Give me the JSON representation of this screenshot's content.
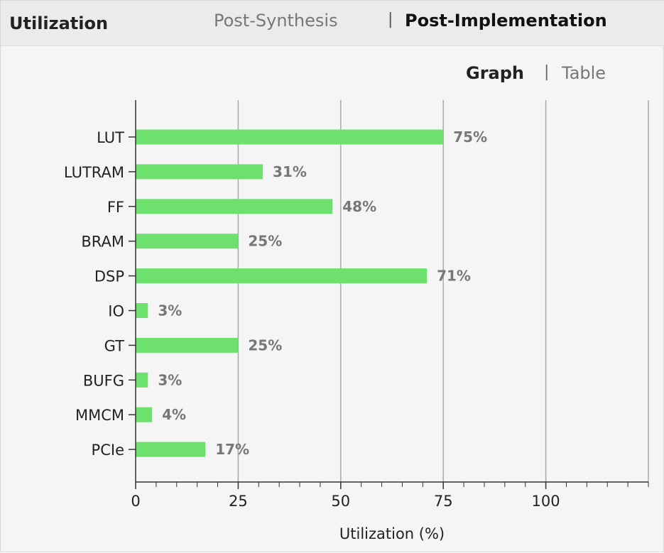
{
  "header": {
    "title": "Utilization",
    "tabs": [
      {
        "label": "Post-Synthesis",
        "active": false
      },
      {
        "label": "Post-Implementation",
        "active": true
      }
    ],
    "separator": "|"
  },
  "view_toggle": {
    "options": [
      {
        "label": "Graph",
        "active": true
      },
      {
        "label": "Table",
        "active": false
      }
    ],
    "separator": "|"
  },
  "colors": {
    "bar": "#6ee06e",
    "grid": "#a8a8a8",
    "value_label": "#777777"
  },
  "chart_data": {
    "type": "bar",
    "orientation": "horizontal",
    "categories": [
      "LUT",
      "LUTRAM",
      "FF",
      "BRAM",
      "DSP",
      "IO",
      "GT",
      "BUFG",
      "MMCM",
      "PCIe"
    ],
    "values": [
      75,
      31,
      48,
      25,
      71,
      3,
      25,
      3,
      4,
      17
    ],
    "value_labels": [
      "75%",
      "31%",
      "48%",
      "25%",
      "71%",
      "3%",
      "25%",
      "3%",
      "4%",
      "17%"
    ],
    "xlabel": "Utilization (%)",
    "ylabel": "",
    "xlim": [
      0,
      125
    ],
    "xticks": [
      0,
      25,
      50,
      75,
      100
    ],
    "xtick_labels": [
      "0",
      "25",
      "50",
      "75",
      "100"
    ],
    "minor_tick_step": 5,
    "grid": true,
    "legend": "none"
  }
}
